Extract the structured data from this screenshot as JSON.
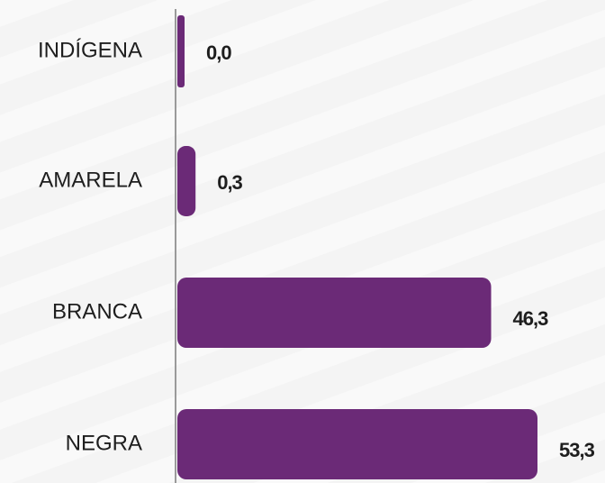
{
  "chart_data": {
    "type": "bar",
    "orientation": "horizontal",
    "categories": [
      "INDÍGENA",
      "AMARELA",
      "BRANCA",
      "NEGRA"
    ],
    "values": [
      0.0,
      0.3,
      46.3,
      53.3
    ],
    "value_labels": [
      "0,0",
      "0,3",
      "46,3",
      "53,3"
    ],
    "color": "#6b2a77"
  }
}
